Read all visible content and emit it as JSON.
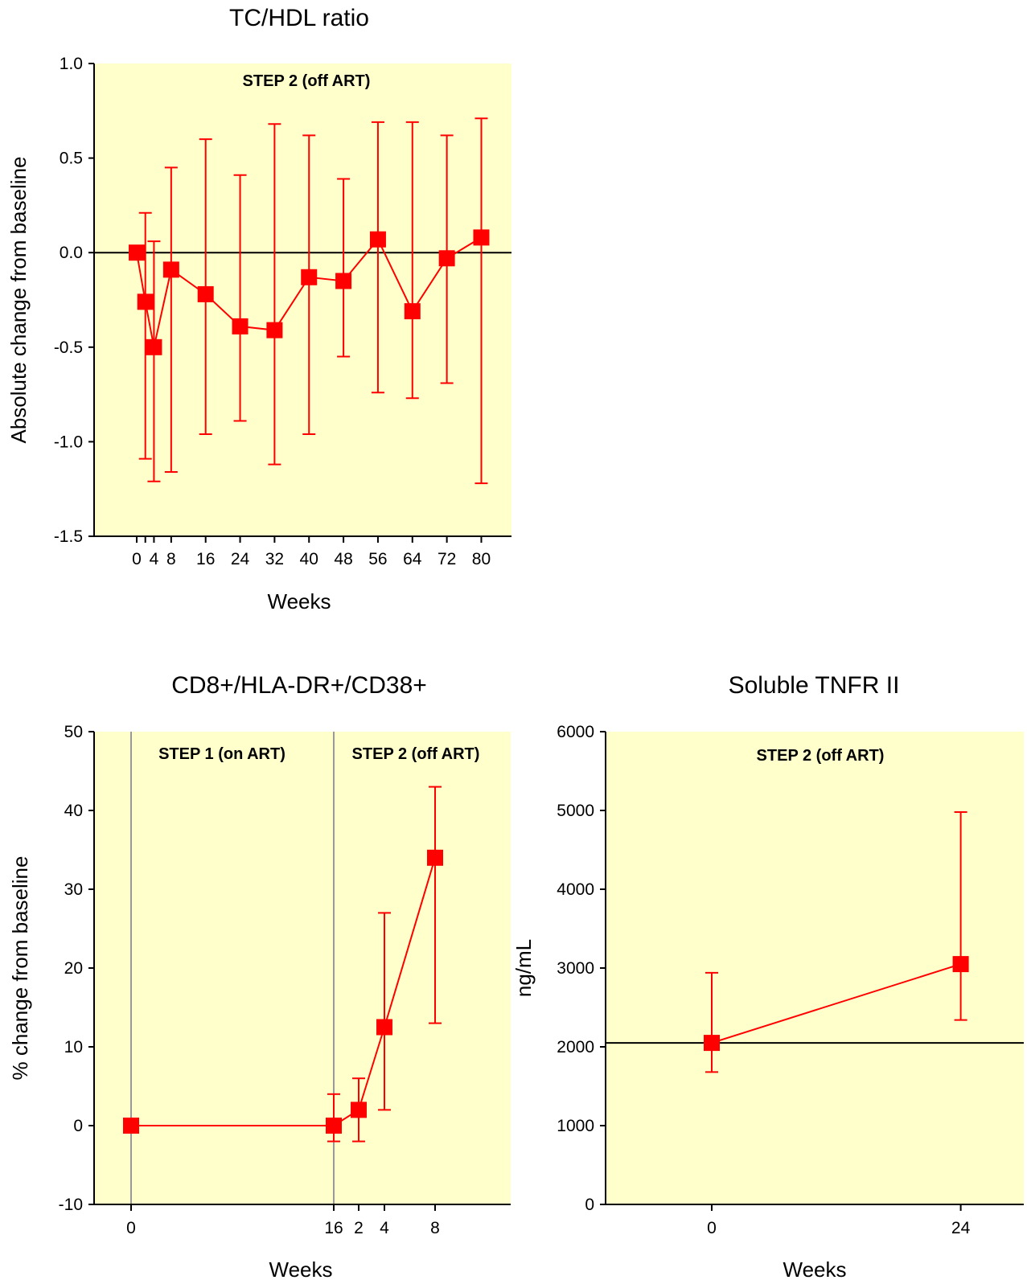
{
  "colors": {
    "plot_bg": "#ffffcc",
    "series": "#ff0000",
    "axis": "#000000",
    "divider": "#999999"
  },
  "chart_data": [
    {
      "type": "line",
      "title": "TC/HDL ratio",
      "xlabel": "Weeks",
      "ylabel": "Absolute change from baseline",
      "ylim": [
        -1.5,
        1.0
      ],
      "yticks": [
        "1.0",
        "0.5",
        "0.0",
        "-0.5",
        "-1.0",
        "-1.5"
      ],
      "xticks": [
        "0",
        "4",
        "8",
        "16",
        "24",
        "32",
        "40",
        "48",
        "56",
        "64",
        "72",
        "80"
      ],
      "annotations": [
        "STEP 2 (off ART)"
      ],
      "reference_line": 0,
      "series": [
        {
          "x": [
            0,
            2,
            4,
            8,
            16,
            24,
            32,
            40,
            48,
            56,
            64,
            72,
            80
          ],
          "y": [
            0.0,
            -0.26,
            -0.5,
            -0.09,
            -0.22,
            -0.39,
            -0.41,
            -0.13,
            -0.15,
            0.07,
            -0.31,
            -0.03,
            0.08
          ],
          "err_low": [
            0.0,
            -1.09,
            -1.21,
            -1.16,
            -0.96,
            -0.89,
            -1.12,
            -0.96,
            -0.55,
            -0.74,
            -0.77,
            -0.69,
            -1.22
          ],
          "err_high": [
            0.0,
            0.21,
            0.06,
            0.45,
            0.6,
            0.41,
            0.68,
            0.62,
            0.39,
            0.69,
            0.69,
            0.62,
            0.71
          ]
        }
      ]
    },
    {
      "type": "line",
      "title": "CD8+/HLA-DR+/CD38+",
      "xlabel": "Weeks",
      "ylabel": "% change from baseline",
      "ylim": [
        -10,
        50
      ],
      "yticks": [
        "50",
        "40",
        "30",
        "20",
        "10",
        "0",
        "-10"
      ],
      "xticks": [
        "0",
        "16",
        "2",
        "4",
        "8"
      ],
      "annotations": [
        "STEP 1 (on ART)",
        "STEP 2 (off ART)"
      ],
      "series": [
        {
          "x": [
            "0",
            "16",
            "2",
            "4",
            "8"
          ],
          "y": [
            0,
            0,
            2,
            12.5,
            34
          ],
          "err_low": [
            0,
            -2,
            -2,
            2,
            13
          ],
          "err_high": [
            0,
            4,
            6,
            27,
            43
          ]
        }
      ]
    },
    {
      "type": "line",
      "title": "Soluble TNFR II",
      "xlabel": "Weeks",
      "ylabel": "ng/mL",
      "ylim": [
        0,
        6000
      ],
      "yticks": [
        "6000",
        "5000",
        "4000",
        "3000",
        "2000",
        "1000",
        "0"
      ],
      "xticks": [
        "0",
        "24"
      ],
      "annotations": [
        "STEP 2 (off ART)"
      ],
      "reference_line": 2050,
      "series": [
        {
          "x": [
            0,
            24
          ],
          "y": [
            2050,
            3050
          ],
          "err_low": [
            1680,
            2340
          ],
          "err_high": [
            2940,
            4980
          ]
        }
      ]
    }
  ]
}
